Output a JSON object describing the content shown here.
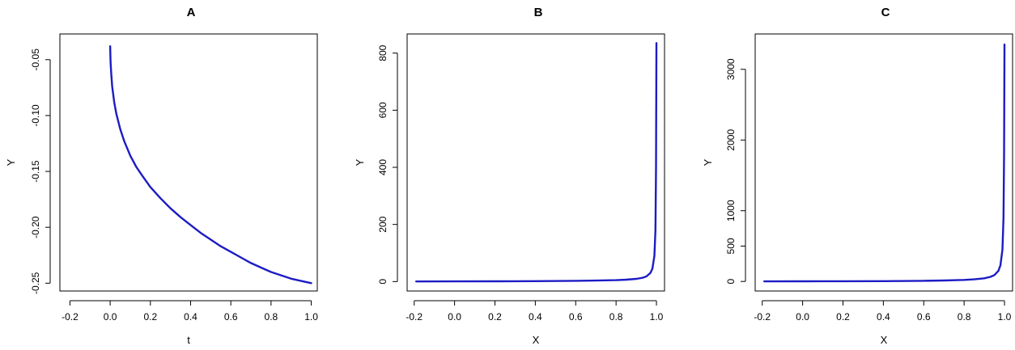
{
  "chart_data": [
    {
      "type": "line",
      "title": "A",
      "xlabel": "t",
      "ylabel": "Y",
      "xlim": [
        -0.25,
        1.03
      ],
      "ylim": [
        -0.257,
        -0.027
      ],
      "xticks": [
        -0.2,
        0.0,
        0.2,
        0.4,
        0.6,
        0.8,
        1.0
      ],
      "xtick_labels": [
        "-0.2",
        "0.0",
        "0.2",
        "0.4",
        "0.6",
        "0.8",
        "1.0"
      ],
      "yticks": [
        -0.05,
        -0.1,
        -0.15,
        -0.2,
        -0.25
      ],
      "ytick_labels": [
        "-0.05",
        "-0.10",
        "-0.15",
        "-0.20",
        "-0.25"
      ],
      "grid": false,
      "series": [
        {
          "color": "#1c1cc4",
          "x": [
            0.0,
            0.002,
            0.005,
            0.01,
            0.02,
            0.03,
            0.05,
            0.07,
            0.1,
            0.13,
            0.16,
            0.2,
            0.25,
            0.3,
            0.35,
            0.4,
            0.45,
            0.5,
            0.55,
            0.6,
            0.65,
            0.7,
            0.75,
            0.8,
            0.85,
            0.9,
            0.95,
            1.0
          ],
          "y": [
            -0.038,
            -0.052,
            -0.062,
            -0.074,
            -0.088,
            -0.098,
            -0.112,
            -0.123,
            -0.136,
            -0.146,
            -0.154,
            -0.164,
            -0.174,
            -0.183,
            -0.191,
            -0.198,
            -0.205,
            -0.211,
            -0.217,
            -0.222,
            -0.227,
            -0.232,
            -0.236,
            -0.24,
            -0.243,
            -0.246,
            -0.248,
            -0.25
          ]
        }
      ]
    },
    {
      "type": "line",
      "title": "B",
      "xlabel": "X",
      "ylabel": "Y",
      "xlim": [
        -0.235,
        1.04
      ],
      "ylim": [
        -33,
        867
      ],
      "xticks": [
        -0.2,
        0.0,
        0.2,
        0.4,
        0.6,
        0.8,
        1.0
      ],
      "xtick_labels": [
        "-0.2",
        "0.0",
        "0.2",
        "0.4",
        "0.6",
        "0.8",
        "1.0"
      ],
      "yticks": [
        0,
        200,
        400,
        600,
        800
      ],
      "ytick_labels": [
        "0",
        "200",
        "400",
        "600",
        "800"
      ],
      "grid": false,
      "series": [
        {
          "color": "#1c1cc4",
          "x": [
            -0.19,
            0.0,
            0.2,
            0.4,
            0.6,
            0.7,
            0.8,
            0.85,
            0.9,
            0.93,
            0.95,
            0.97,
            0.98,
            0.99,
            0.995,
            0.998,
            0.999,
            1.0
          ],
          "y": [
            0.5,
            0.8,
            1.1,
            1.6,
            2.6,
            3.5,
            5.0,
            6.5,
            9.5,
            13.0,
            18.0,
            30.0,
            45.0,
            90.0,
            180.0,
            400.0,
            650.0,
            835.0
          ]
        }
      ]
    },
    {
      "type": "line",
      "title": "C",
      "xlabel": "X",
      "ylabel": "Y",
      "xlim": [
        -0.235,
        1.04
      ],
      "ylim": [
        -135,
        3500
      ],
      "xticks": [
        -0.2,
        0.0,
        0.2,
        0.4,
        0.6,
        0.8,
        1.0
      ],
      "xtick_labels": [
        "-0.2",
        "0.0",
        "0.2",
        "0.4",
        "0.6",
        "0.8",
        "1.0"
      ],
      "yticks": [
        0,
        500,
        1000,
        2000,
        3000
      ],
      "ytick_labels": [
        "0",
        "500",
        "1000",
        "2000",
        "3000"
      ],
      "grid": false,
      "series": [
        {
          "color": "#1c1cc4",
          "x": [
            -0.19,
            0.0,
            0.2,
            0.4,
            0.6,
            0.7,
            0.8,
            0.85,
            0.9,
            0.93,
            0.95,
            0.97,
            0.98,
            0.99,
            0.995,
            0.998,
            0.999,
            1.0
          ],
          "y": [
            1.0,
            2.0,
            3.0,
            5.0,
            9.0,
            14.0,
            22.0,
            30.0,
            45.0,
            65.0,
            90.0,
            150.0,
            230.0,
            450.0,
            900.0,
            1800.0,
            2700.0,
            3350.0
          ]
        }
      ]
    }
  ]
}
